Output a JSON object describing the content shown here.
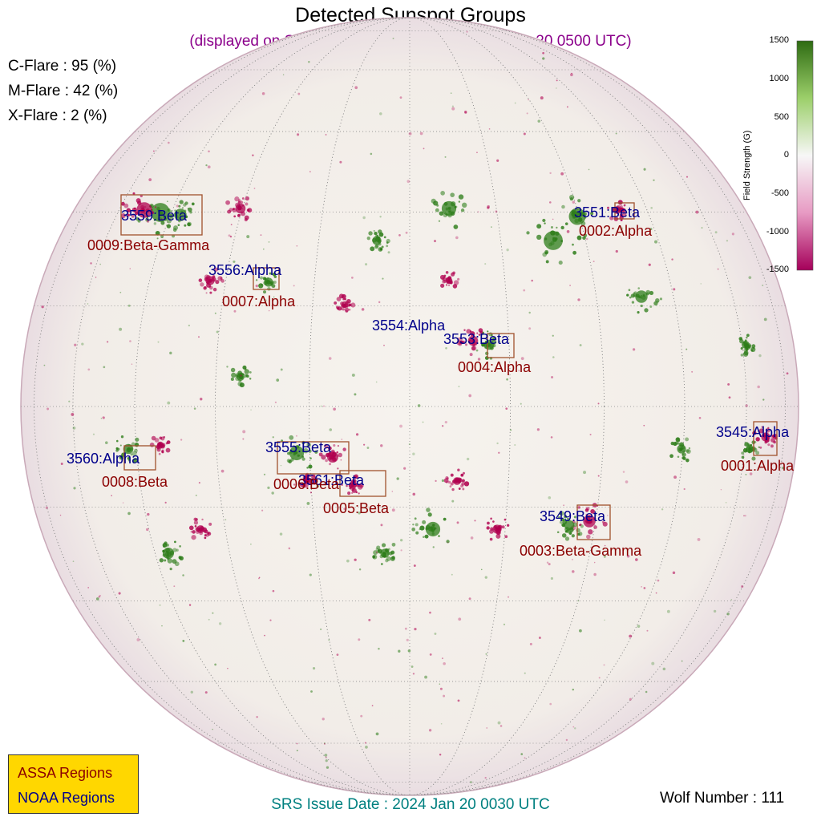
{
  "title": "Detected Sunspot Groups",
  "subtitle": "(displayed on SDO HMI Magnetogram at 2024 Jan 20 0500 UTC)",
  "flares": {
    "c": "C-Flare : 95 (%)",
    "m": "M-Flare : 42 (%)",
    "x": "X-Flare :  2 (%)"
  },
  "colorbar": {
    "label": "Field Strength (G)",
    "ticks": [
      "1500",
      "1000",
      "500",
      "0",
      "-500",
      "-1000",
      "-1500"
    ],
    "positive_color": "#2e7d1a",
    "negative_color": "#b0004f"
  },
  "noaa_regions": [
    "3559:Beta",
    "3551:Beta",
    "3556:Alpha",
    "3554:Alpha",
    "3553:Beta",
    "3545:Alpha",
    "3555:Beta",
    "3560:Alpha",
    "3561:Beta",
    "3549:Beta"
  ],
  "assa_regions": [
    "0009:Beta-Gamma",
    "0002:Alpha",
    "0007:Alpha",
    "0004:Alpha",
    "0001:Alpha",
    "0008:Beta",
    "0006:Beta",
    "0005:Beta",
    "0003:Beta-Gamma"
  ],
  "legend": {
    "assa": "ASSA Regions",
    "noaa": "NOAA Regions"
  },
  "srs_issue": "SRS Issue Date : 2024 Jan 20 0030 UTC",
  "wolf_number": "Wolf Number : 111",
  "colors": {
    "noaa": "#00008b",
    "assa": "#8b0000",
    "subtitle": "#8b008b",
    "srs": "#008080",
    "legend_bg": "#ffd700",
    "box": "#a0522d"
  }
}
